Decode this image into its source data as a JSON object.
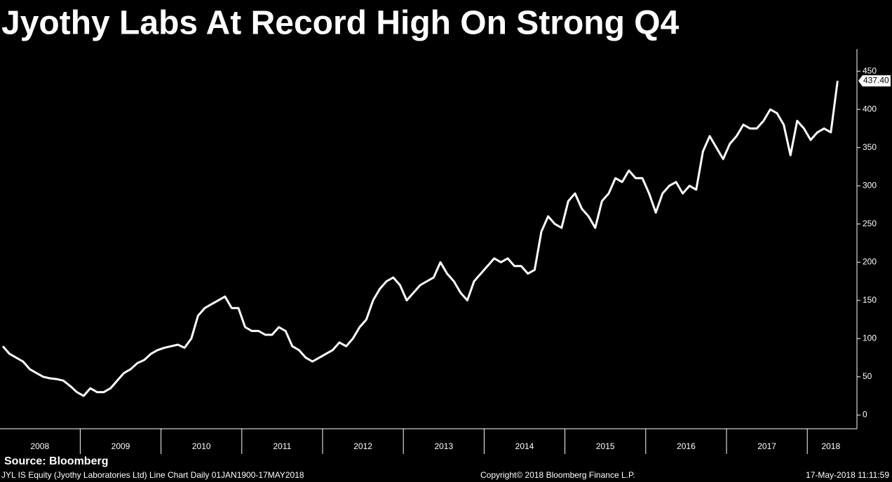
{
  "chart_data": {
    "type": "line",
    "title": "Jyothy Labs At Record High On Strong Q4",
    "categories": [
      null,
      null,
      null,
      null,
      null,
      null,
      "2008",
      null,
      null,
      null,
      null,
      null,
      null,
      null,
      null,
      null,
      null,
      null,
      "2009",
      null,
      null,
      null,
      null,
      null,
      null,
      null,
      null,
      null,
      null,
      null,
      "2010",
      null,
      null,
      null,
      null,
      null,
      null,
      null,
      null,
      null,
      null,
      null,
      "2011",
      null,
      null,
      null,
      null,
      null,
      null,
      null,
      null,
      null,
      null,
      null,
      "2012",
      null,
      null,
      null,
      null,
      null,
      null,
      null,
      null,
      null,
      null,
      null,
      "2013",
      null,
      null,
      null,
      null,
      null,
      null,
      null,
      null,
      null,
      null,
      null,
      "2014",
      null,
      null,
      null,
      null,
      null,
      null,
      null,
      null,
      null,
      null,
      null,
      "2015",
      null,
      null,
      null,
      null,
      null,
      null,
      null,
      null,
      null,
      null,
      null,
      "2016",
      null,
      null,
      null,
      null,
      null,
      null,
      null,
      null,
      null,
      null,
      null,
      "2017",
      null,
      null,
      null,
      null,
      null,
      null,
      null,
      "2018",
      null,
      null
    ],
    "series": [
      {
        "color": "#ffffff",
        "values": [
          90,
          80,
          75,
          70,
          60,
          55,
          50,
          48,
          47,
          45,
          38,
          30,
          25,
          35,
          30,
          30,
          35,
          45,
          55,
          60,
          68,
          72,
          80,
          85,
          88,
          90,
          92,
          88,
          100,
          130,
          140,
          145,
          150,
          155,
          140,
          140,
          115,
          110,
          110,
          105,
          105,
          115,
          110,
          90,
          85,
          75,
          70,
          75,
          80,
          85,
          95,
          90,
          100,
          115,
          125,
          150,
          165,
          175,
          180,
          170,
          150,
          160,
          170,
          175,
          180,
          200,
          185,
          175,
          160,
          150,
          175,
          185,
          195,
          205,
          200,
          205,
          195,
          195,
          185,
          190,
          240,
          260,
          250,
          245,
          280,
          290,
          270,
          260,
          245,
          280,
          290,
          310,
          305,
          320,
          310,
          310,
          290,
          265,
          290,
          300,
          305,
          290,
          300,
          295,
          345,
          365,
          350,
          335,
          355,
          365,
          380,
          375,
          375,
          385,
          400,
          395,
          380,
          340,
          385,
          375,
          360,
          370,
          375,
          370,
          437.4
        ],
        "value_labels": [
          null,
          null,
          null,
          null,
          null,
          null,
          null,
          null,
          null,
          null,
          null,
          null,
          null,
          null,
          null,
          null,
          null,
          null,
          null,
          null,
          null,
          null,
          null,
          null,
          null,
          null,
          null,
          null,
          null,
          null,
          null,
          null,
          null,
          null,
          null,
          null,
          null,
          null,
          null,
          null,
          null,
          null,
          null,
          null,
          null,
          null,
          null,
          null,
          null,
          null,
          null,
          null,
          null,
          null,
          null,
          null,
          null,
          null,
          null,
          null,
          null,
          null,
          null,
          null,
          null,
          null,
          null,
          null,
          null,
          null,
          null,
          null,
          null,
          null,
          null,
          null,
          null,
          null,
          null,
          null,
          null,
          null,
          null,
          null,
          null,
          null,
          null,
          null,
          null,
          null,
          null,
          null,
          null,
          null,
          null,
          null,
          null,
          null,
          null,
          null,
          null,
          null,
          null,
          null,
          null,
          null,
          null,
          null,
          null,
          null,
          null,
          null,
          null,
          null,
          null,
          null,
          null,
          null,
          null,
          null,
          null,
          null,
          null,
          null,
          "437.40"
        ]
      }
    ],
    "ylim": [
      -18,
      479
    ],
    "yticks": [
      0,
      50,
      100,
      150,
      200,
      250,
      300,
      350,
      400,
      450
    ],
    "grid": false
  },
  "footer": {
    "source": "Source: Bloomberg",
    "description": "JYL IS Equity (Jyothy Laboratories Ltd) Line Chart  Daily 01JAN1900-17MAY2018",
    "copyright": "Copyright© 2018 Bloomberg Finance L.P.",
    "timestamp": "17-May-2018 11:11:59"
  }
}
